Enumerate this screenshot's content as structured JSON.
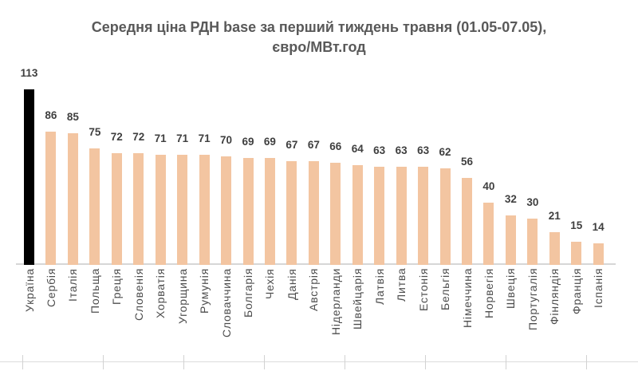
{
  "title": {
    "line1": "Середня ціна РДН base за перший тиждень травня (01.05-07.05),",
    "line2": "євро/МВт.год"
  },
  "chart_data": {
    "type": "bar",
    "title": "Середня ціна РДН base за перший тиждень травня (01.05-07.05), євро/МВт.год",
    "xlabel": "",
    "ylabel": "євро/МВт.год",
    "ylim": [
      0,
      113
    ],
    "grid": false,
    "y_axis_visible": false,
    "value_labels": true,
    "categories": [
      "Україна",
      "Сербія",
      "Італія",
      "Польща",
      "Греція",
      "Словенія",
      "Хорватія",
      "Угорщина",
      "Румунія",
      "Словаччина",
      "Болгарія",
      "Чехія",
      "Данія",
      "Австрія",
      "Нідерланди",
      "Швейцарія",
      "Латвія",
      "Литва",
      "Естонія",
      "Бельгія",
      "Німеччина",
      "Норвегія",
      "Швеція",
      "Португалія",
      "Фінляндія",
      "Франція",
      "Іспанія"
    ],
    "values": [
      113,
      86,
      85,
      75,
      72,
      72,
      71,
      71,
      71,
      70,
      69,
      69,
      67,
      67,
      66,
      64,
      63,
      63,
      63,
      62,
      56,
      40,
      32,
      30,
      21,
      15,
      14
    ],
    "highlight_index": 0,
    "colors": {
      "bar_default": "#F3C5A1",
      "bar_highlight": "#000000",
      "title": "#595959",
      "value_label": "#3F3F3F",
      "category_label": "#4D4D4D",
      "axis_line": "#D6D6D6"
    }
  }
}
